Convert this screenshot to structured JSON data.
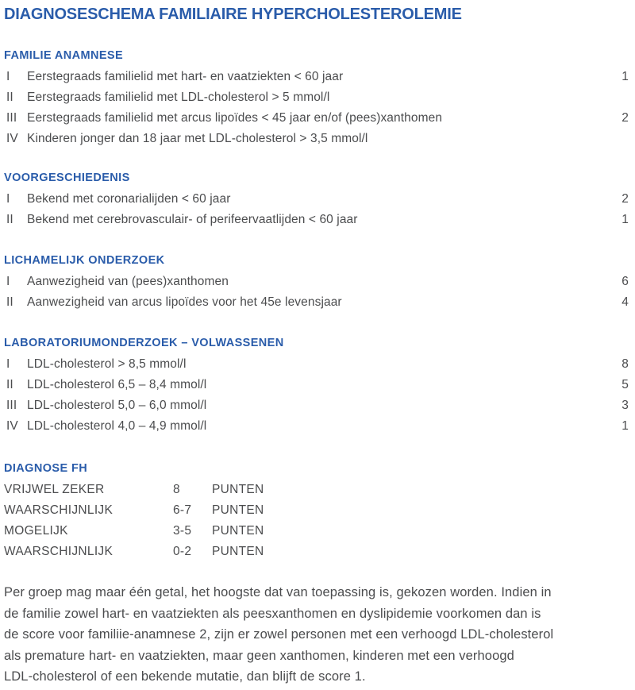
{
  "page": {
    "title": "DIAGNOSESCHEMA FAMILIAIRE HYPERCHOLESTEROLEMIE"
  },
  "colors": {
    "accent_blue": "#2a5caa",
    "body_text": "#4b4c4e",
    "background": "#ffffff"
  },
  "sections": [
    {
      "heading": "FAMILIE ANAMNESE",
      "rows": [
        {
          "numeral": "I",
          "text": "Eerstegraads familielid met hart- en vaatziekten < 60 jaar",
          "score": "1"
        },
        {
          "numeral": "II",
          "text": "Eerstegraads familielid met LDL-cholesterol > 5 mmol/l",
          "score": ""
        },
        {
          "numeral": "III",
          "text": "Eerstegraads familielid met arcus lipoïdes < 45 jaar en/of (pees)xanthomen",
          "score": "2"
        },
        {
          "numeral": "IV",
          "text": "Kinderen jonger dan 18 jaar met LDL-cholesterol > 3,5 mmol/l",
          "score": ""
        }
      ]
    },
    {
      "heading": "VOORGESCHIEDENIS",
      "rows": [
        {
          "numeral": "I",
          "text": "Bekend met coronarialijden < 60 jaar",
          "score": "2"
        },
        {
          "numeral": "II",
          "text": "Bekend met cerebrovasculair- of perifeervaatlijden < 60 jaar",
          "score": "1"
        }
      ]
    },
    {
      "heading": "LICHAMELIJK ONDERZOEK",
      "rows": [
        {
          "numeral": "I",
          "text": "Aanwezigheid van (pees)xanthomen",
          "score": "6"
        },
        {
          "numeral": "II",
          "text": "Aanwezigheid van arcus lipoïdes voor het 45e levensjaar",
          "score": "4"
        }
      ]
    },
    {
      "heading": "LABORATORIUMONDERZOEK – VOLWASSENEN",
      "rows": [
        {
          "numeral": "I",
          "text": "LDL-cholesterol > 8,5 mmol/l",
          "score": "8"
        },
        {
          "numeral": "II",
          "text": "LDL-cholesterol 6,5 – 8,4 mmol/l",
          "score": "5"
        },
        {
          "numeral": "III",
          "text": "LDL-cholesterol 5,0 – 6,0 mmol/l",
          "score": "3"
        },
        {
          "numeral": "IV",
          "text": "LDL-cholesterol 4,0 – 4,9 mmol/l",
          "score": "1"
        }
      ]
    }
  ],
  "diagnose": {
    "heading": "DIAGNOSE FH",
    "rows": [
      {
        "label": "VRIJWEL ZEKER",
        "range": "8",
        "unit": "PUNTEN"
      },
      {
        "label": "WAARSCHIJNLIJK",
        "range": "6-7",
        "unit": "PUNTEN"
      },
      {
        "label": "MOGELIJK",
        "range": "3-5",
        "unit": "PUNTEN"
      },
      {
        "label": "WAARSCHIJNLIJK",
        "range": "0-2",
        "unit": "PUNTEN"
      }
    ]
  },
  "footnote": {
    "lines": [
      "Per groep mag maar één getal, het hoogste dat van toepassing is, gekozen worden. Indien in",
      "de familie zowel hart- en vaatziekten als peesxanthomen en dyslipidemie voorkomen dan is",
      "de score voor familiie-anamnese 2, zijn er zowel personen met een verhoogd LDL-cholesterol",
      "als premature hart- en vaatziekten, maar geen xanthomen, kinderen met een verhoogd",
      "LDL-cholesterol of een bekende mutatie, dan blijft de score 1."
    ]
  }
}
